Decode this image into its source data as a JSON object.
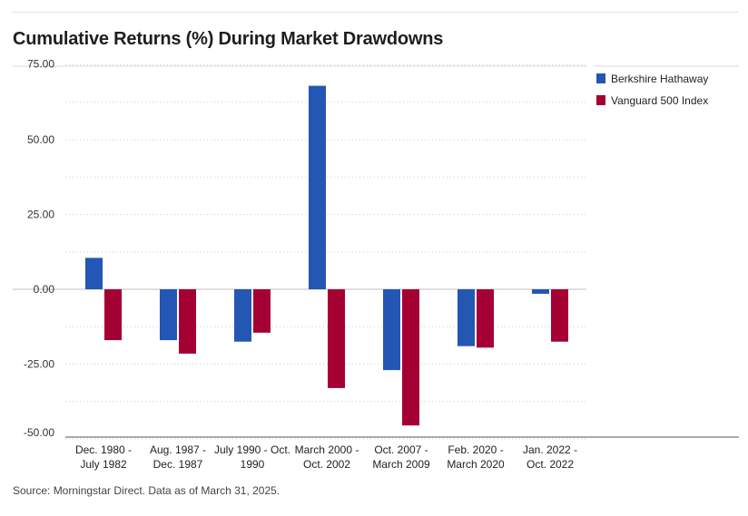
{
  "chart_data": {
    "type": "bar",
    "title": "Cumulative Returns (%) During Market Drawdowns",
    "xlabel": "",
    "ylabel": "",
    "ylim": [
      -50,
      80
    ],
    "y_ticks": [
      {
        "value": 75,
        "label": "75.00"
      },
      {
        "value": 50,
        "label": "50.00"
      },
      {
        "value": 25,
        "label": "25.00"
      },
      {
        "value": 0,
        "label": "0.00"
      },
      {
        "value": -25,
        "label": "-25.00"
      },
      {
        "value": -50,
        "label": "-50.00"
      }
    ],
    "categories": [
      [
        "Dec. 1980 -",
        "July 1982"
      ],
      [
        "Aug. 1987 -",
        "Dec. 1987"
      ],
      [
        "July 1990 - Oct.",
        "1990"
      ],
      [
        "March 2000 -",
        "Oct. 2002"
      ],
      [
        "Oct. 2007 -",
        "March 2009"
      ],
      [
        "Feb. 2020 -",
        "March 2020"
      ],
      [
        "Jan. 2022 -",
        "Oct. 2022"
      ]
    ],
    "series": [
      {
        "name": "Berkshire Hathaway",
        "color": "#2456b4",
        "values": [
          10.5,
          -17,
          -17.5,
          68,
          -27,
          -19,
          -1.5
        ]
      },
      {
        "name": "Vanguard 500 Index",
        "color": "#a50034",
        "values": [
          -17,
          -21.5,
          -14.5,
          -33,
          -45.5,
          -19.5,
          -17.5
        ]
      }
    ],
    "legend_position": "top-right",
    "grid": true
  },
  "source_note": "Source: Morningstar Direct. Data as of March 31, 2025."
}
